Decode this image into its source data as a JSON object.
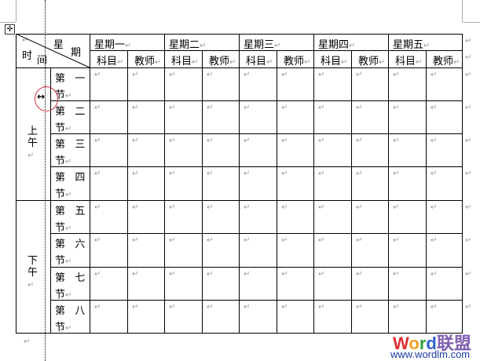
{
  "para_mark": "↵",
  "corner": {
    "top": "星",
    "top2": "期",
    "bottom": "时",
    "bottom2": "间"
  },
  "days": [
    "星期一",
    "星期二",
    "星期三",
    "星期四",
    "星期五"
  ],
  "sub": {
    "subject": "科目",
    "teacher": "教师"
  },
  "periods": [
    [
      "第",
      "一",
      "节"
    ],
    [
      "第",
      "二",
      "节"
    ],
    [
      "第",
      "三",
      "节"
    ],
    [
      "第",
      "四",
      "节"
    ],
    [
      "第",
      "五",
      "节"
    ],
    [
      "第",
      "六",
      "节"
    ],
    [
      "第",
      "七",
      "节"
    ],
    [
      "第",
      "八",
      "节"
    ]
  ],
  "sessions": [
    [
      "上",
      "午"
    ],
    [
      "下",
      "午"
    ]
  ],
  "watermark": {
    "logo": "Word联盟",
    "url": "www.wordlm.com"
  }
}
